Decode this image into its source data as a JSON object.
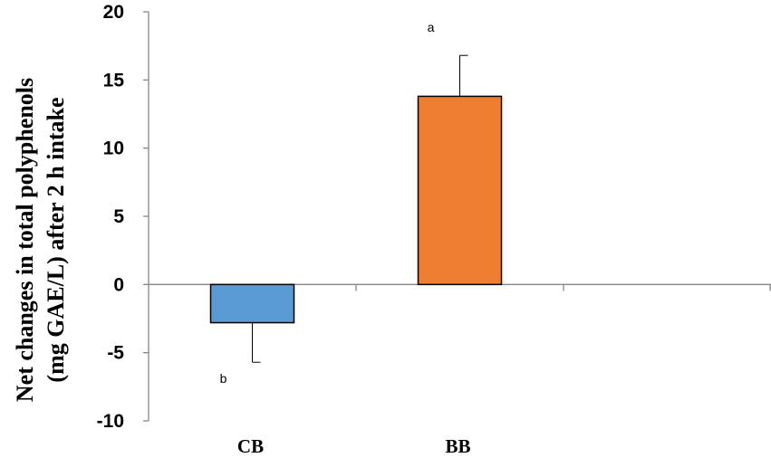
{
  "chart_data": {
    "type": "bar",
    "categories": [
      "CB",
      "BB"
    ],
    "values": [
      -2.8,
      13.8
    ],
    "errors": [
      2.9,
      3.0
    ],
    "significance_labels": [
      "b",
      "a"
    ],
    "colors": [
      "#5b9bd5",
      "#ed7d31"
    ],
    "ylabel_lines": [
      "Net changes in total polyphenols",
      "(mg GAE/L)  after 2 h intake"
    ],
    "xlabel": "",
    "ylim": [
      -10,
      20
    ],
    "yticks": [
      20,
      15,
      10,
      5,
      0,
      -5,
      -10
    ],
    "ytick_labels": [
      "20",
      "15",
      "10",
      "5",
      "0",
      "-5",
      "-10"
    ],
    "n_slots": 3,
    "grid": false,
    "legend": "none"
  }
}
